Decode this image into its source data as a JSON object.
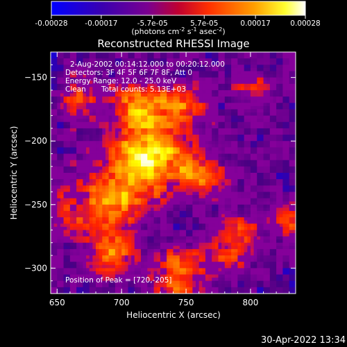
{
  "chart_data": {
    "type": "heatmap",
    "title": "Reconstructed RHESSI Image",
    "xlabel": "Heliocentric X (arcsec)",
    "ylabel": "Heliocentric Y (arcsec)",
    "xlim": [
      645,
      835
    ],
    "ylim": [
      -320,
      -130
    ],
    "x_ticks": [
      650,
      700,
      750,
      800
    ],
    "y_ticks": [
      -150,
      -200,
      -250,
      -300
    ],
    "colorbar": {
      "range": [
        -0.00028,
        0.00028
      ],
      "tick_values": [
        -0.00028,
        -0.00017,
        -5.7e-05,
        5.7e-05,
        0.00017,
        0.00028
      ],
      "tick_labels": [
        "-0.00028",
        "-0.00017",
        "-5.7e-05",
        "5.7e-05",
        "0.00017",
        "0.00028"
      ],
      "unit": "(photons cm-2 s-1 asec-2)"
    },
    "annotations": {
      "time": "2-Aug-2002 00:14:12.000 to 00:20:12.000",
      "detectors": "Detectors: 3F 4F 5F 6F 7F 8F, Att 0",
      "energy": "Energy Range: 12.0 - 25.0 keV",
      "method": "Clean",
      "counts": "Total counts: 5.13E+03",
      "peak": "Position of Peak = [720,-205]"
    },
    "peak": {
      "x": 720,
      "y": -205
    },
    "emission_sources": [
      {
        "x": 718,
        "y": -210,
        "sx": 22,
        "sy": 20,
        "amp": 1.0
      },
      {
        "x": 712,
        "y": -170,
        "sx": 14,
        "sy": 12,
        "amp": 0.6
      },
      {
        "x": 665,
        "y": -165,
        "sx": 10,
        "sy": 12,
        "amp": 0.55
      },
      {
        "x": 690,
        "y": -250,
        "sx": 18,
        "sy": 18,
        "amp": 0.7
      },
      {
        "x": 745,
        "y": -170,
        "sx": 14,
        "sy": 10,
        "amp": 0.55
      },
      {
        "x": 760,
        "y": -225,
        "sx": 14,
        "sy": 12,
        "amp": 0.5
      },
      {
        "x": 785,
        "y": -275,
        "sx": 12,
        "sy": 14,
        "amp": 0.55
      },
      {
        "x": 745,
        "y": -295,
        "sx": 18,
        "sy": 10,
        "amp": 0.55
      },
      {
        "x": 690,
        "y": -288,
        "sx": 12,
        "sy": 10,
        "amp": 0.6
      },
      {
        "x": 828,
        "y": -262,
        "sx": 12,
        "sy": 10,
        "amp": 0.5
      },
      {
        "x": 800,
        "y": -160,
        "sx": 12,
        "sy": 10,
        "amp": 0.35
      },
      {
        "x": 655,
        "y": -255,
        "sx": 8,
        "sy": 14,
        "amp": 0.35
      },
      {
        "x": 740,
        "y": -315,
        "sx": 16,
        "sy": 6,
        "amp": 0.4
      }
    ],
    "colormap": [
      "#0000ff",
      "#4b0082",
      "#9400a0",
      "#ff2000",
      "#ff8800",
      "#ffff00",
      "#ffffff"
    ]
  },
  "timestamp": "30-Apr-2022 13:34"
}
